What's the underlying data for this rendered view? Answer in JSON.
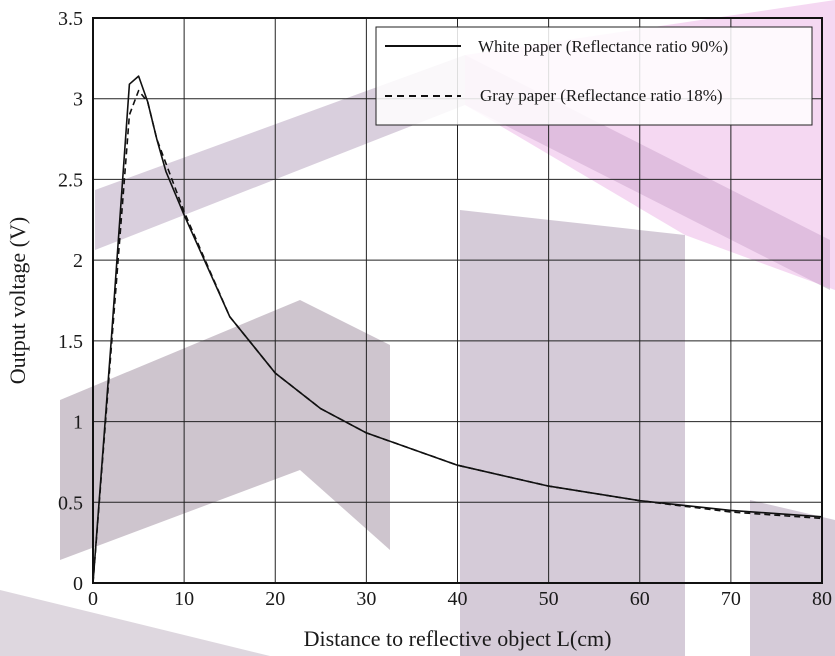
{
  "chart_data": {
    "type": "line",
    "title": "",
    "xlabel": "Distance to reflective object L(cm)",
    "ylabel": "Output voltage (V)",
    "xlim": [
      0,
      80
    ],
    "ylim": [
      0,
      3.5
    ],
    "xticks": [
      0,
      10,
      20,
      30,
      40,
      50,
      60,
      70,
      80
    ],
    "yticks": [
      0,
      0.5,
      1,
      1.5,
      2,
      2.5,
      3,
      3.5
    ],
    "xtick_labels": [
      "0",
      "10",
      "20",
      "30",
      "40",
      "50",
      "60",
      "70",
      "80"
    ],
    "ytick_labels": [
      "0",
      "0.5",
      "1",
      "1.5",
      "2",
      "2.5",
      "3",
      "3.5"
    ],
    "grid": true,
    "legend_position": "top-right",
    "series": [
      {
        "name": "White paper (Reflectance ratio 90%)",
        "style": "solid",
        "color": "#111111",
        "x": [
          0,
          2,
          4,
          5,
          6,
          7,
          8,
          10,
          15,
          20,
          25,
          30,
          40,
          50,
          60,
          70,
          80
        ],
        "y": [
          0,
          1.5,
          3.09,
          3.14,
          2.98,
          2.75,
          2.55,
          2.28,
          1.65,
          1.3,
          1.08,
          0.93,
          0.73,
          0.6,
          0.51,
          0.45,
          0.41
        ]
      },
      {
        "name": "Gray paper (Reflectance ratio 18%)",
        "style": "dashed",
        "color": "#111111",
        "x": [
          0,
          2,
          4,
          5,
          6,
          7,
          8,
          10,
          15,
          20,
          25,
          30,
          40,
          50,
          60,
          70,
          80
        ],
        "y": [
          0,
          1.45,
          2.9,
          3.05,
          2.98,
          2.75,
          2.6,
          2.3,
          1.65,
          1.3,
          1.08,
          0.93,
          0.73,
          0.6,
          0.51,
          0.44,
          0.4
        ]
      }
    ]
  }
}
